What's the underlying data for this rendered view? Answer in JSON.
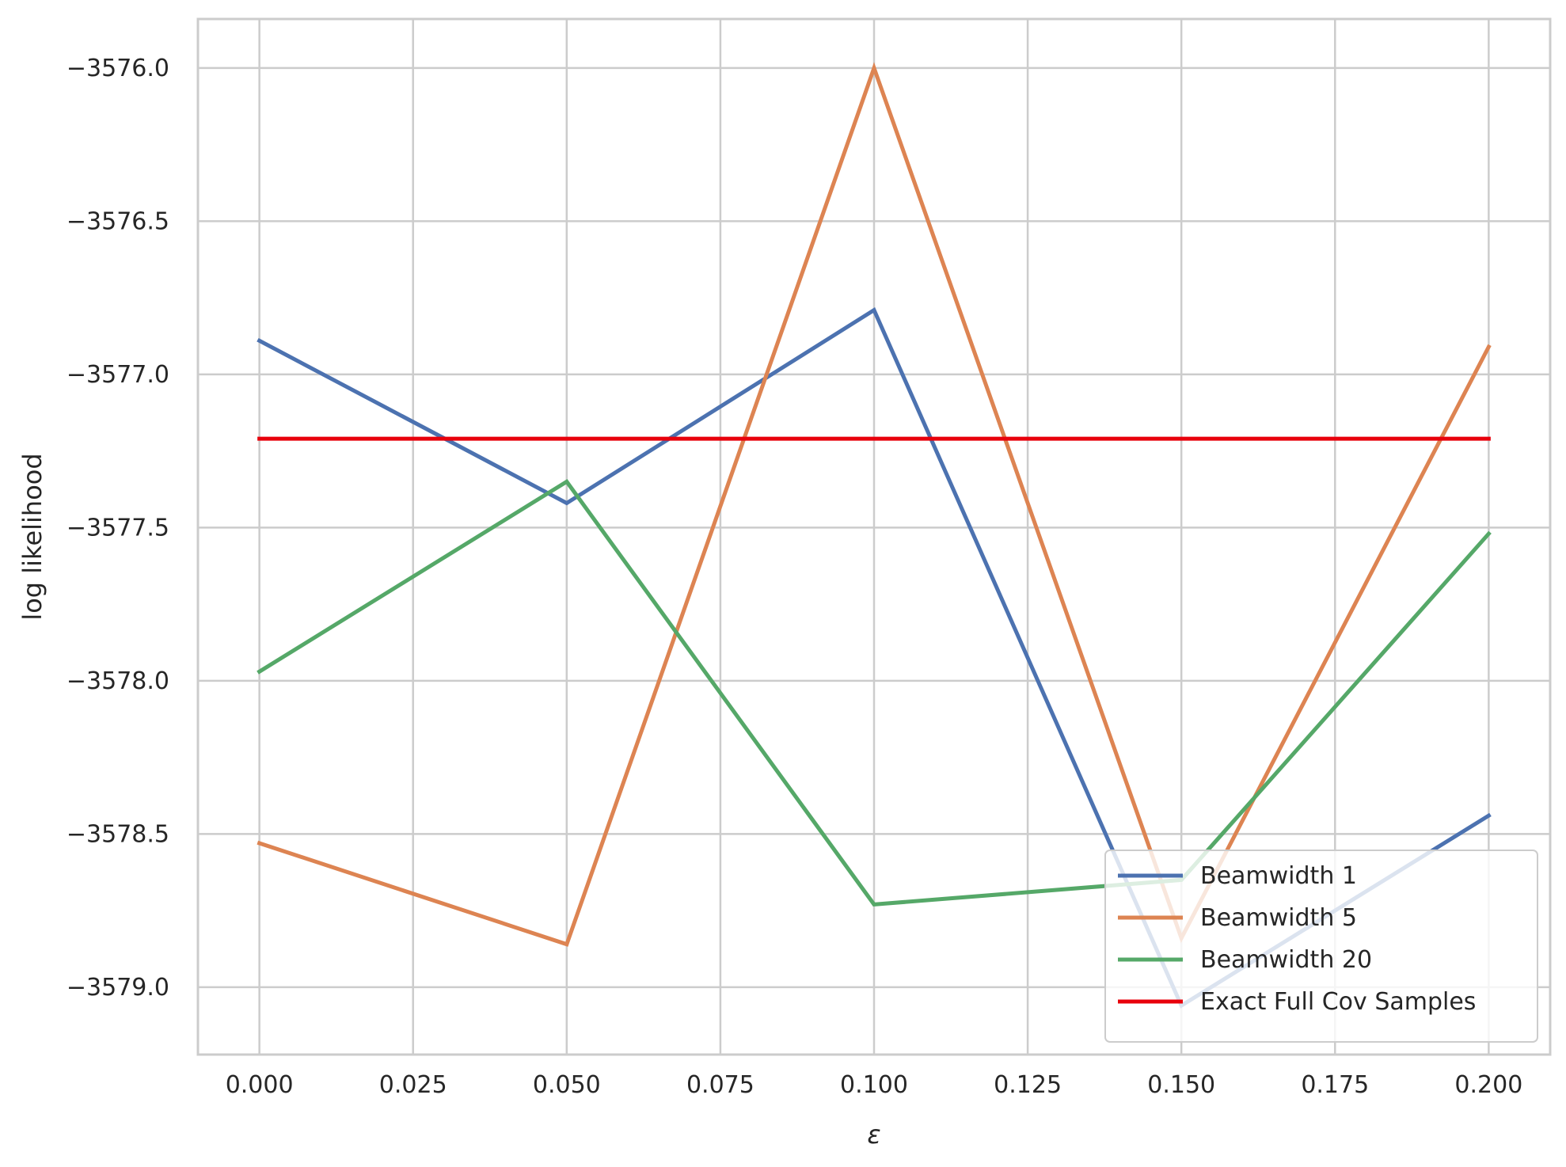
{
  "chart_data": {
    "type": "line",
    "title": "",
    "xlabel": "ε",
    "ylabel": "log likelihood",
    "xlim": [
      -0.01,
      0.21
    ],
    "ylim": [
      -3579.22,
      -3575.84
    ],
    "xticks": [
      0.0,
      0.025,
      0.05,
      0.075,
      0.1,
      0.125,
      0.15,
      0.175,
      0.2
    ],
    "xtick_labels": [
      "0.000",
      "0.025",
      "0.050",
      "0.075",
      "0.100",
      "0.125",
      "0.150",
      "0.175",
      "0.200"
    ],
    "yticks": [
      -3576.0,
      -3576.5,
      -3577.0,
      -3577.5,
      -3578.0,
      -3578.5,
      -3579.0
    ],
    "ytick_labels": [
      "−3576.0",
      "−3576.5",
      "−3577.0",
      "−3577.5",
      "−3578.0",
      "−3578.5",
      "−3579.0"
    ],
    "grid": true,
    "legend_position": "lower-right",
    "x": [
      0.0,
      0.05,
      0.1,
      0.15,
      0.2
    ],
    "series": [
      {
        "name": "Beamwidth 1",
        "color": "#4c72b0",
        "values": [
          -3576.89,
          -3577.42,
          -3576.79,
          -3579.06,
          -3578.44
        ]
      },
      {
        "name": "Beamwidth 5",
        "color": "#dd8452",
        "values": [
          -3578.53,
          -3578.86,
          -3576.0,
          -3578.84,
          -3576.91
        ]
      },
      {
        "name": "Beamwidth 20",
        "color": "#55a868",
        "values": [
          -3577.97,
          -3577.35,
          -3578.73,
          -3578.65,
          -3577.52
        ]
      },
      {
        "name": "Exact Full Cov Samples",
        "color": "#e8000b",
        "values": [
          -3577.21,
          -3577.21,
          -3577.21,
          -3577.21,
          -3577.21
        ]
      }
    ]
  }
}
